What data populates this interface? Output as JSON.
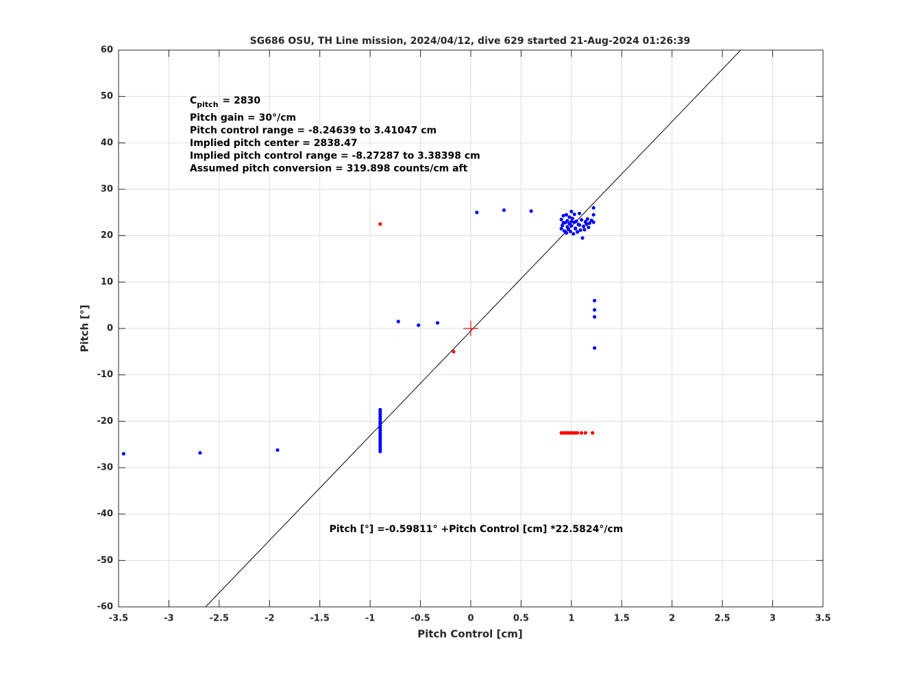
{
  "chart_data": {
    "type": "scatter",
    "title": "SG686 OSU, TH Line mission, 2024/04/12, dive 629 started 21-Aug-2024 01:26:39",
    "x_label": "Pitch Control [cm]",
    "y_label": "Pitch [°]",
    "xlim": [
      -3.5,
      3.5
    ],
    "ylim": [
      -60,
      60
    ],
    "xticks": [
      -3.5,
      -3,
      -2.5,
      -2,
      -1.5,
      -1,
      -0.5,
      0,
      0.5,
      1,
      1.5,
      2,
      2.5,
      3,
      3.5
    ],
    "yticks": [
      -60,
      -50,
      -40,
      -30,
      -20,
      -10,
      0,
      10,
      20,
      30,
      40,
      50,
      60
    ],
    "grid": true,
    "c_pitch": {
      "base": "C",
      "sub": "pitch",
      "rest": "= 2830"
    },
    "annotations": [
      "Pitch gain = 30°/cm",
      "Pitch control range = -8.24639 to 3.41047 cm",
      "Implied pitch center = 2838.47",
      "Implied pitch control range = -8.27287 to 3.38398 cm",
      "Assumed pitch conversion = 319.898 counts/cm aft"
    ],
    "fit_label": "Pitch [°] =-0.59811° +Pitch Control [cm] *22.5824°/cm",
    "series": [
      {
        "style": "line",
        "color": "#000000",
        "x": [
          -2.635,
          2.683
        ],
        "y": [
          -60,
          60
        ]
      },
      {
        "style": "points",
        "color": "#0000ff",
        "x": [
          -3.45,
          -2.69,
          -1.92,
          -0.72,
          -0.52,
          -0.33,
          0.06,
          0.33,
          0.6,
          1.23,
          1.23,
          1.23,
          1.23
        ],
        "y": [
          -27,
          -26.8,
          -26.2,
          1.5,
          0.7,
          1.2,
          25,
          25.5,
          25.3,
          6,
          4,
          2.5,
          -4.2
        ]
      },
      {
        "style": "points",
        "color": "#0000ff",
        "x": [
          -0.9,
          -0.9,
          -0.9,
          -0.9,
          -0.9,
          -0.9,
          -0.9,
          -0.9,
          -0.9,
          -0.9,
          -0.9,
          -0.9,
          -0.9,
          -0.9,
          -0.9,
          -0.9,
          -0.9,
          -0.9,
          -0.9
        ],
        "y": [
          -17.5,
          -18,
          -18.5,
          -19,
          -19.5,
          -20,
          -20.5,
          -21,
          -21.5,
          -22,
          -22.5,
          -23,
          -23.5,
          -24,
          -24.5,
          -25,
          -25.5,
          -26,
          -26.5
        ]
      },
      {
        "style": "points",
        "color": "#0000ff",
        "x": [
          0.9,
          0.9,
          0.91,
          0.92,
          0.93,
          0.94,
          0.95,
          0.95,
          0.96,
          0.97,
          0.98,
          0.98,
          0.99,
          1.0,
          1.0,
          1.01,
          1.02,
          1.03,
          1.03,
          1.04,
          1.05,
          1.06,
          1.07,
          1.08,
          1.09,
          1.1,
          1.11,
          1.12,
          1.13,
          1.14,
          1.15,
          1.16,
          1.17,
          1.18,
          1.2,
          1.22,
          1.22,
          1.22,
          0.92,
          0.96,
          1.0,
          1.04,
          1.08
        ],
        "y": [
          21.5,
          23.5,
          22.2,
          24.3,
          21.0,
          22.8,
          20.6,
          24.5,
          23.2,
          21.4,
          22.6,
          24.0,
          20.9,
          25.2,
          22.1,
          23.7,
          20.4,
          22.9,
          24.6,
          21.6,
          23.1,
          20.8,
          22.4,
          24.8,
          21.2,
          23.4,
          19.5,
          22.0,
          21.3,
          23.0,
          22.5,
          23.6,
          21.8,
          22.7,
          23.3,
          24.5,
          26.0,
          22.9,
          22.8,
          21.9,
          23.0,
          21.5,
          22.3
        ]
      },
      {
        "style": "points",
        "color": "#ff0000",
        "x": [
          -0.9,
          -0.17,
          0.9,
          0.92,
          0.94,
          0.96,
          0.98,
          1.0,
          1.02,
          1.04,
          1.06,
          1.1,
          1.14,
          1.21
        ],
        "y": [
          22.5,
          -5,
          -22.5,
          -22.5,
          -22.5,
          -22.5,
          -22.5,
          -22.5,
          -22.5,
          -22.5,
          -22.5,
          -22.5,
          -22.5,
          -22.5
        ]
      },
      {
        "style": "cross",
        "color": "#ff0000",
        "x": [
          0
        ],
        "y": [
          0
        ]
      }
    ]
  }
}
